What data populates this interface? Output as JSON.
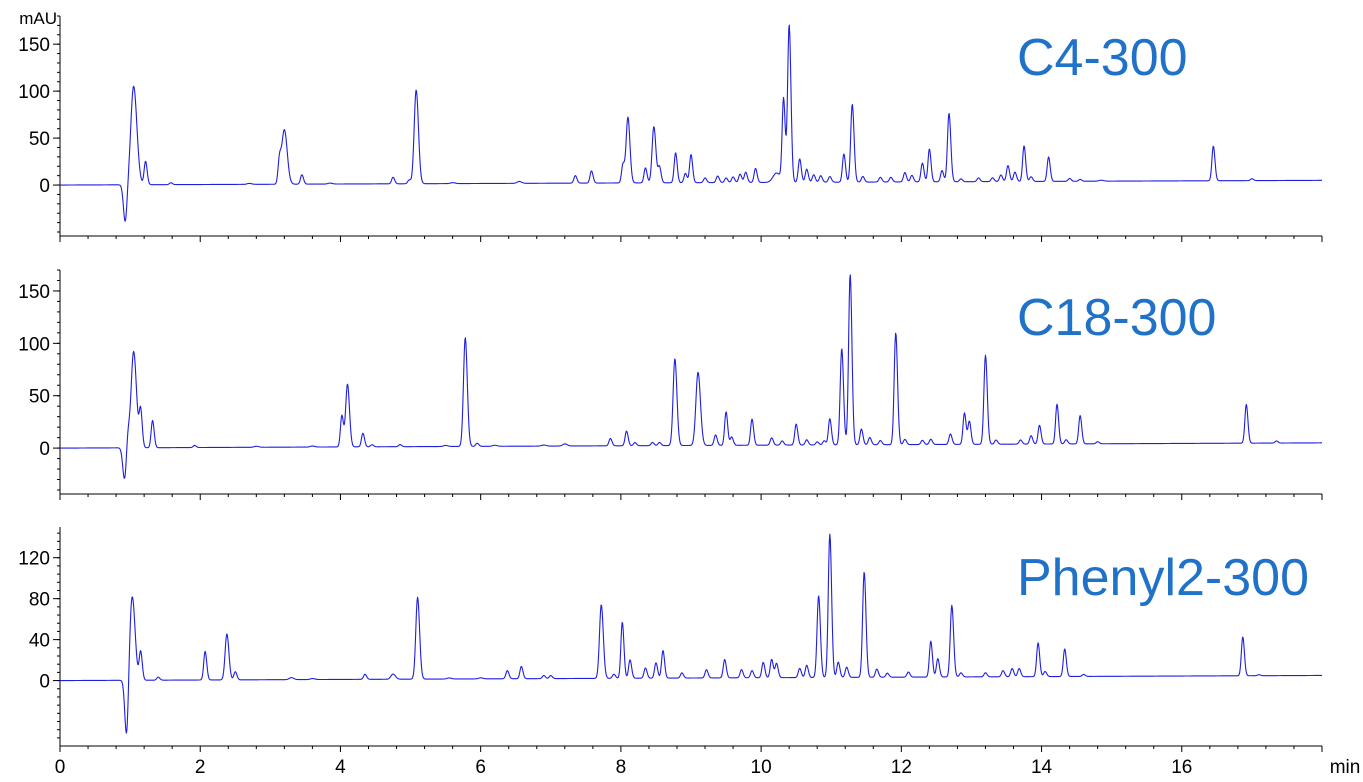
{
  "colors": {
    "trace": "#1f1fe0",
    "title": "#1f72c8",
    "axis": "#000000"
  },
  "chart_data": {
    "type": "line",
    "xlabel": "min",
    "ylabel": "mAU",
    "xlim": [
      0,
      18
    ],
    "x_ticks": [
      0,
      2,
      4,
      6,
      8,
      10,
      12,
      14,
      16
    ],
    "x_tick_labels": [
      "0",
      "2",
      "4",
      "6",
      "8",
      "10",
      "12",
      "14",
      "16"
    ],
    "grid": false,
    "legend": "none",
    "panels": [
      {
        "title": "C4-300",
        "ylim": [
          -50,
          180
        ],
        "y_ticks": [
          0,
          50,
          100,
          150
        ],
        "y_tick_labels": [
          "0",
          "50",
          "100",
          "150"
        ],
        "y_unit": "mAU",
        "baseline_start": 0,
        "baseline_end": 5,
        "dip": {
          "x": 0.93,
          "y": -40
        },
        "peaks": [
          [
            1.05,
            105,
            0.04
          ],
          [
            1.22,
            25,
            0.02
          ],
          [
            1.58,
            2,
            0.02
          ],
          [
            2.7,
            1,
            0.03
          ],
          [
            3.13,
            25,
            0.02
          ],
          [
            3.2,
            58,
            0.035
          ],
          [
            3.45,
            10,
            0.02
          ],
          [
            3.85,
            1,
            0.03
          ],
          [
            4.75,
            7,
            0.02
          ],
          [
            4.98,
            4,
            0.02
          ],
          [
            5.08,
            100,
            0.028
          ],
          [
            5.6,
            1,
            0.03
          ],
          [
            6.55,
            2,
            0.03
          ],
          [
            7.35,
            8,
            0.02
          ],
          [
            7.58,
            13,
            0.02
          ],
          [
            8.03,
            20,
            0.02
          ],
          [
            8.1,
            70,
            0.025
          ],
          [
            8.35,
            16,
            0.02
          ],
          [
            8.47,
            60,
            0.025
          ],
          [
            8.55,
            17,
            0.02
          ],
          [
            8.78,
            32,
            0.02
          ],
          [
            8.92,
            10,
            0.02
          ],
          [
            9.0,
            30,
            0.02
          ],
          [
            9.2,
            5,
            0.02
          ],
          [
            9.38,
            7,
            0.02
          ],
          [
            9.5,
            5,
            0.02
          ],
          [
            9.6,
            6,
            0.02
          ],
          [
            9.7,
            9,
            0.02
          ],
          [
            9.78,
            11,
            0.02
          ],
          [
            9.92,
            15,
            0.02
          ],
          [
            10.22,
            10,
            0.05
          ],
          [
            10.32,
            88,
            0.02
          ],
          [
            10.4,
            168,
            0.022
          ],
          [
            10.55,
            25,
            0.02
          ],
          [
            10.65,
            14,
            0.02
          ],
          [
            10.75,
            8,
            0.02
          ],
          [
            10.85,
            7,
            0.02
          ],
          [
            10.98,
            6,
            0.02
          ],
          [
            11.18,
            30,
            0.02
          ],
          [
            11.3,
            83,
            0.022
          ],
          [
            11.45,
            6,
            0.02
          ],
          [
            11.7,
            5,
            0.02
          ],
          [
            11.85,
            5,
            0.02
          ],
          [
            12.05,
            10,
            0.02
          ],
          [
            12.15,
            7,
            0.02
          ],
          [
            12.3,
            20,
            0.02
          ],
          [
            12.4,
            35,
            0.02
          ],
          [
            12.58,
            12,
            0.02
          ],
          [
            12.68,
            73,
            0.022
          ],
          [
            12.85,
            3,
            0.02
          ],
          [
            13.1,
            4,
            0.02
          ],
          [
            13.3,
            4,
            0.02
          ],
          [
            13.42,
            7,
            0.02
          ],
          [
            13.52,
            17,
            0.02
          ],
          [
            13.62,
            10,
            0.02
          ],
          [
            13.75,
            38,
            0.02
          ],
          [
            13.85,
            5,
            0.02
          ],
          [
            14.1,
            26,
            0.02
          ],
          [
            14.4,
            3,
            0.02
          ],
          [
            14.55,
            2,
            0.02
          ],
          [
            14.85,
            1,
            0.03
          ],
          [
            16.45,
            37,
            0.02
          ],
          [
            17.0,
            2,
            0.02
          ]
        ]
      },
      {
        "title": "C18-300",
        "ylim": [
          -40,
          170
        ],
        "y_ticks": [
          0,
          50,
          100,
          150
        ],
        "y_tick_labels": [
          "0",
          "50",
          "100",
          "150"
        ],
        "y_unit": "",
        "baseline_start": 0,
        "baseline_end": 5,
        "dip": {
          "x": 0.92,
          "y": -30
        },
        "peaks": [
          [
            0.97,
            14,
            0.02
          ],
          [
            1.05,
            92,
            0.035
          ],
          [
            1.15,
            35,
            0.02
          ],
          [
            1.32,
            26,
            0.02
          ],
          [
            1.92,
            2,
            0.02
          ],
          [
            2.8,
            1,
            0.03
          ],
          [
            3.6,
            1,
            0.03
          ],
          [
            4.02,
            30,
            0.02
          ],
          [
            4.1,
            60,
            0.025
          ],
          [
            4.32,
            13,
            0.02
          ],
          [
            4.45,
            2,
            0.02
          ],
          [
            4.85,
            2,
            0.02
          ],
          [
            5.5,
            1,
            0.03
          ],
          [
            5.78,
            104,
            0.025
          ],
          [
            5.95,
            3,
            0.02
          ],
          [
            6.2,
            1,
            0.03
          ],
          [
            6.9,
            1,
            0.03
          ],
          [
            7.2,
            2,
            0.03
          ],
          [
            7.85,
            7,
            0.02
          ],
          [
            8.08,
            14,
            0.02
          ],
          [
            8.2,
            3,
            0.02
          ],
          [
            8.45,
            3,
            0.02
          ],
          [
            8.55,
            3,
            0.02
          ],
          [
            8.77,
            83,
            0.025
          ],
          [
            9.1,
            70,
            0.03
          ],
          [
            9.35,
            10,
            0.02
          ],
          [
            9.5,
            32,
            0.02
          ],
          [
            9.58,
            8,
            0.02
          ],
          [
            9.87,
            25,
            0.02
          ],
          [
            10.15,
            7,
            0.02
          ],
          [
            10.3,
            4,
            0.02
          ],
          [
            10.5,
            20,
            0.02
          ],
          [
            10.65,
            5,
            0.02
          ],
          [
            10.8,
            3,
            0.02
          ],
          [
            10.9,
            4,
            0.02
          ],
          [
            10.98,
            25,
            0.02
          ],
          [
            11.15,
            92,
            0.022
          ],
          [
            11.27,
            163,
            0.022
          ],
          [
            11.43,
            15,
            0.02
          ],
          [
            11.55,
            7,
            0.02
          ],
          [
            11.7,
            4,
            0.02
          ],
          [
            11.92,
            107,
            0.022
          ],
          [
            12.05,
            5,
            0.02
          ],
          [
            12.3,
            4,
            0.02
          ],
          [
            12.42,
            5,
            0.02
          ],
          [
            12.7,
            10,
            0.02
          ],
          [
            12.9,
            30,
            0.02
          ],
          [
            12.97,
            22,
            0.02
          ],
          [
            13.2,
            85,
            0.022
          ],
          [
            13.35,
            4,
            0.02
          ],
          [
            13.7,
            4,
            0.02
          ],
          [
            13.85,
            8,
            0.02
          ],
          [
            13.97,
            18,
            0.02
          ],
          [
            14.22,
            38,
            0.02
          ],
          [
            14.35,
            4,
            0.02
          ],
          [
            14.55,
            27,
            0.02
          ],
          [
            14.8,
            2,
            0.02
          ],
          [
            16.92,
            37,
            0.02
          ],
          [
            17.35,
            2,
            0.02
          ]
        ]
      },
      {
        "title": "Phenyl2-300",
        "ylim": [
          -60,
          150
        ],
        "y_ticks": [
          0,
          40,
          80,
          120
        ],
        "y_tick_labels": [
          "0",
          "40",
          "80",
          "120"
        ],
        "y_unit": "",
        "baseline_start": 0,
        "baseline_end": 5,
        "dip": {
          "x": 0.95,
          "y": -57
        },
        "peaks": [
          [
            1.03,
            82,
            0.035
          ],
          [
            1.15,
            28,
            0.02
          ],
          [
            1.4,
            3,
            0.02
          ],
          [
            2.07,
            28,
            0.02
          ],
          [
            2.38,
            45,
            0.025
          ],
          [
            2.5,
            8,
            0.02
          ],
          [
            3.3,
            2,
            0.03
          ],
          [
            3.6,
            1,
            0.03
          ],
          [
            4.35,
            5,
            0.02
          ],
          [
            4.75,
            5,
            0.03
          ],
          [
            5.1,
            80,
            0.025
          ],
          [
            5.55,
            1,
            0.03
          ],
          [
            6.0,
            1,
            0.03
          ],
          [
            6.38,
            8,
            0.02
          ],
          [
            6.58,
            12,
            0.02
          ],
          [
            6.9,
            3,
            0.02
          ],
          [
            7.0,
            3,
            0.02
          ],
          [
            7.72,
            72,
            0.025
          ],
          [
            7.9,
            4,
            0.02
          ],
          [
            8.02,
            55,
            0.02
          ],
          [
            8.13,
            18,
            0.02
          ],
          [
            8.35,
            10,
            0.02
          ],
          [
            8.5,
            15,
            0.02
          ],
          [
            8.6,
            27,
            0.02
          ],
          [
            8.87,
            5,
            0.02
          ],
          [
            9.22,
            8,
            0.02
          ],
          [
            9.48,
            18,
            0.02
          ],
          [
            9.72,
            8,
            0.02
          ],
          [
            9.87,
            7,
            0.02
          ],
          [
            10.03,
            15,
            0.02
          ],
          [
            10.15,
            18,
            0.02
          ],
          [
            10.22,
            14,
            0.02
          ],
          [
            10.55,
            9,
            0.02
          ],
          [
            10.65,
            12,
            0.02
          ],
          [
            10.82,
            80,
            0.022
          ],
          [
            10.98,
            140,
            0.022
          ],
          [
            11.1,
            15,
            0.02
          ],
          [
            11.22,
            10,
            0.02
          ],
          [
            11.47,
            103,
            0.022
          ],
          [
            11.65,
            8,
            0.02
          ],
          [
            11.8,
            4,
            0.02
          ],
          [
            12.1,
            5,
            0.02
          ],
          [
            12.42,
            35,
            0.02
          ],
          [
            12.52,
            18,
            0.02
          ],
          [
            12.72,
            70,
            0.022
          ],
          [
            12.85,
            4,
            0.02
          ],
          [
            13.2,
            4,
            0.02
          ],
          [
            13.45,
            6,
            0.02
          ],
          [
            13.58,
            8,
            0.02
          ],
          [
            13.68,
            8,
            0.02
          ],
          [
            13.95,
            33,
            0.02
          ],
          [
            14.05,
            5,
            0.02
          ],
          [
            14.33,
            27,
            0.02
          ],
          [
            14.6,
            2,
            0.02
          ],
          [
            16.87,
            38,
            0.02
          ],
          [
            17.1,
            1,
            0.02
          ]
        ]
      }
    ]
  }
}
